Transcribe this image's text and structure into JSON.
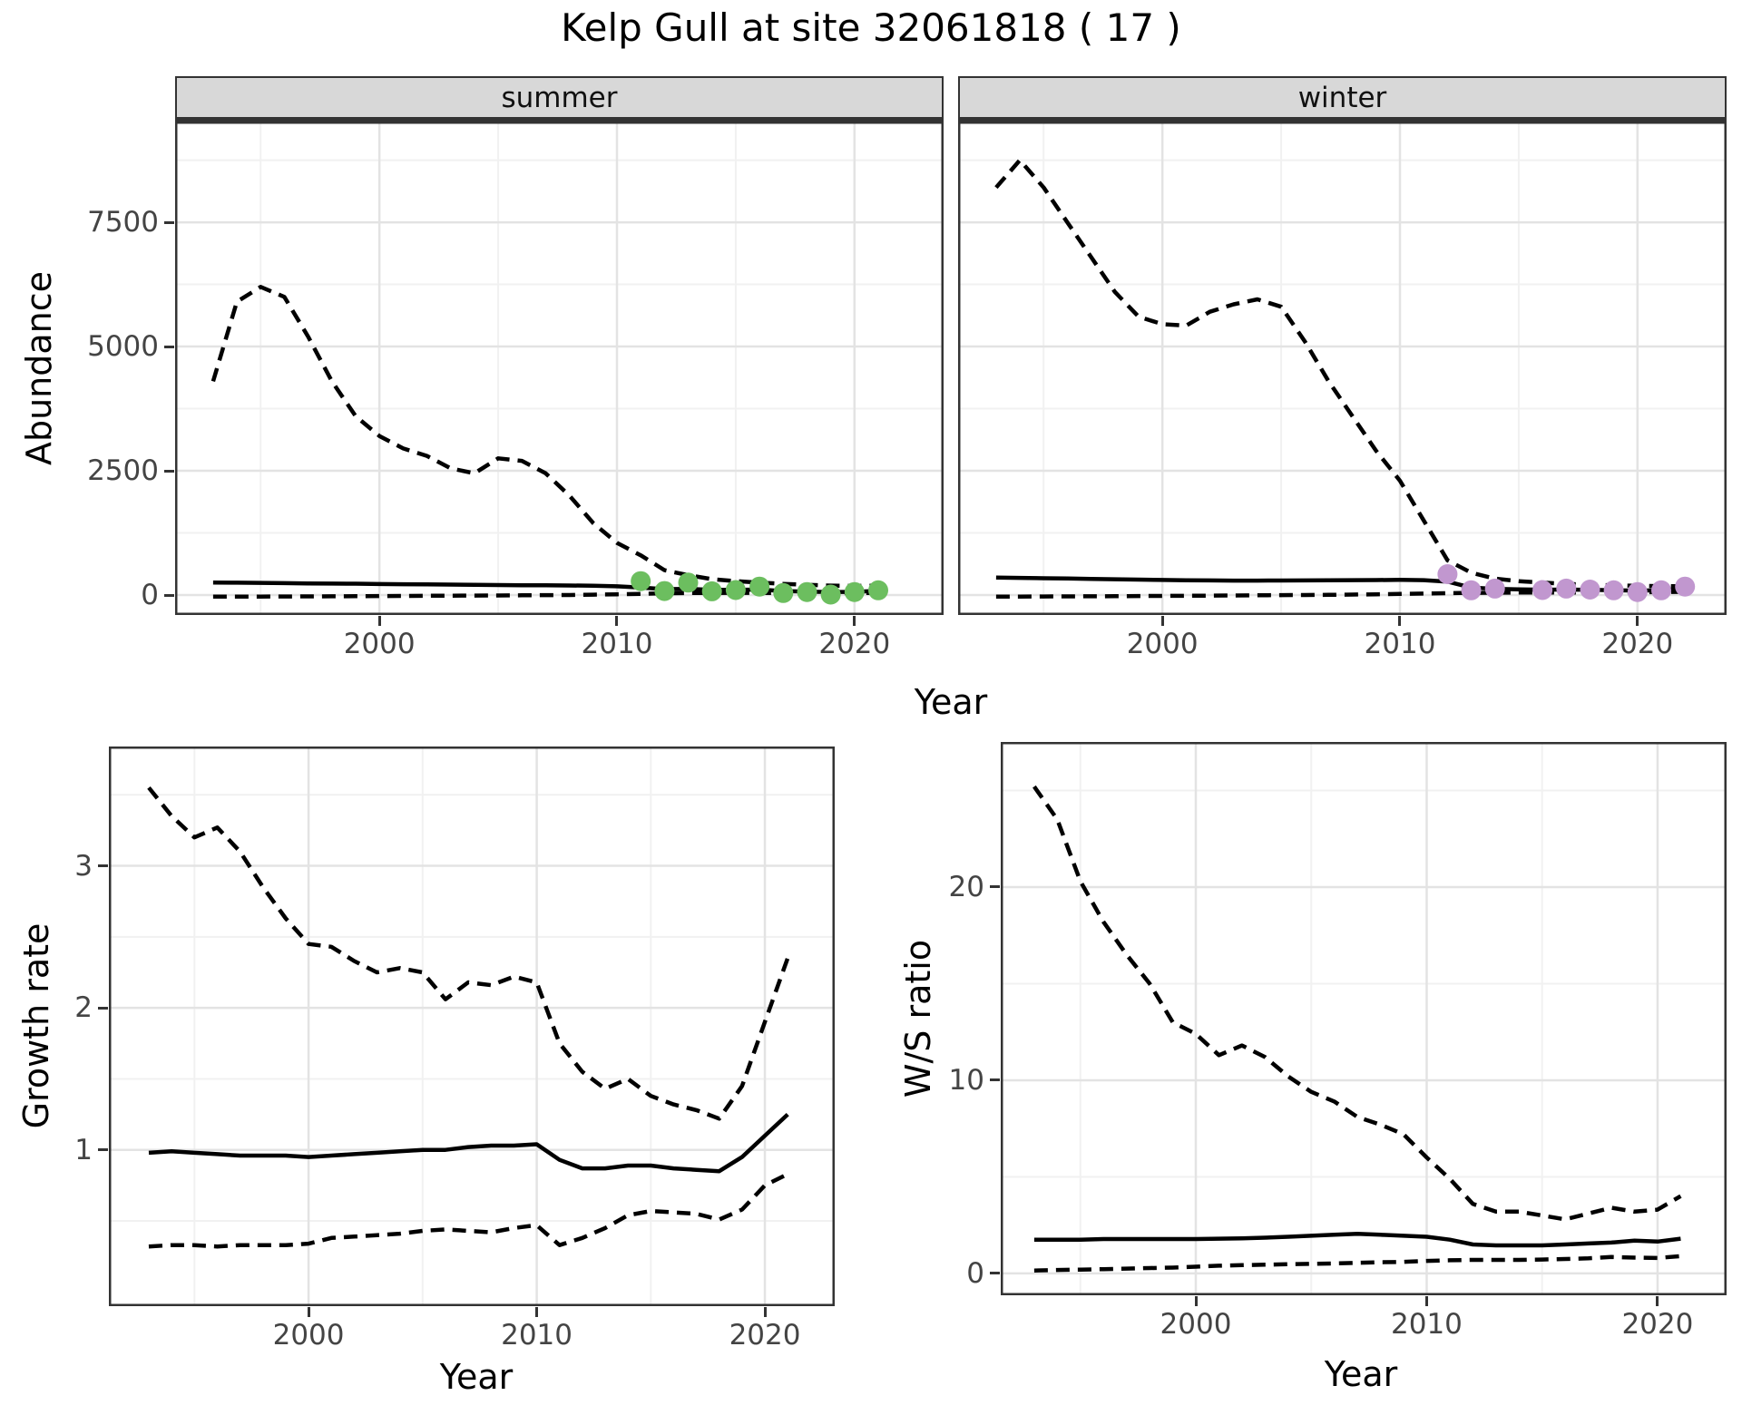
{
  "title": "Kelp Gull at site 32061818 ( 17 )",
  "colors": {
    "summer_point": "#6CBE5F",
    "winter_point": "#C197CF",
    "line": "#000000",
    "strip_bg": "#D8D8D8",
    "grid_major": "#E3E3E3",
    "grid_minor": "#F1F1F1",
    "panel_border": "#333333",
    "axis_text": "#444444"
  },
  "chart_data": [
    {
      "id": "abundance",
      "type": "line",
      "xlabel": "Year",
      "ylabel": "Abundance",
      "xlim": [
        1991.4,
        2023.75
      ],
      "ylim": [
        -401,
        9527
      ],
      "x_ticks": [
        2000,
        2010,
        2020
      ],
      "x_minor": [
        1995,
        2005,
        2015
      ],
      "y_ticks": [
        0,
        2500,
        5000,
        7500
      ],
      "y_minor": [
        1250,
        3750,
        6250,
        8750
      ],
      "legend_position": "none",
      "grid": "on",
      "facets": [
        {
          "label": "summer",
          "series": [
            {
              "name": "ci-upper",
              "style": "dashed",
              "years": [
                1993,
                1994,
                1995,
                1996,
                1997,
                1998,
                1999,
                2000,
                2001,
                2002,
                2003,
                2004,
                2005,
                2006,
                2007,
                2008,
                2009,
                2010,
                2011,
                2012,
                2013,
                2014,
                2015,
                2016,
                2017,
                2018,
                2019,
                2020,
                2021
              ],
              "values": [
                4300,
                5900,
                6200,
                6000,
                5200,
                4300,
                3600,
                3200,
                2950,
                2800,
                2550,
                2450,
                2750,
                2700,
                2450,
                2000,
                1450,
                1050,
                800,
                500,
                400,
                320,
                280,
                250,
                225,
                205,
                190,
                185,
                190
              ]
            },
            {
              "name": "median",
              "style": "solid",
              "years": [
                1993,
                1994,
                1995,
                1996,
                1997,
                1998,
                1999,
                2000,
                2001,
                2002,
                2003,
                2004,
                2005,
                2006,
                2007,
                2008,
                2009,
                2010,
                2011,
                2012,
                2013,
                2014,
                2015,
                2016,
                2017,
                2018,
                2019,
                2020,
                2021
              ],
              "values": [
                250,
                248,
                245,
                240,
                235,
                230,
                228,
                222,
                218,
                214,
                210,
                206,
                202,
                198,
                196,
                192,
                188,
                175,
                150,
                120,
                125,
                105,
                105,
                110,
                80,
                70,
                60,
                65,
                85
              ]
            },
            {
              "name": "ci-lower",
              "style": "dashed",
              "years": [
                1993,
                1994,
                1995,
                1996,
                1997,
                1998,
                1999,
                2000,
                2001,
                2002,
                2003,
                2004,
                2005,
                2006,
                2007,
                2008,
                2009,
                2010,
                2011,
                2012,
                2013,
                2014,
                2015,
                2016,
                2017,
                2018,
                2019,
                2020,
                2021
              ],
              "values": [
                -30,
                -30,
                -30,
                -28,
                -27,
                -25,
                -23,
                -20,
                -18,
                -15,
                -12,
                -10,
                -8,
                -5,
                -2,
                0,
                8,
                15,
                25,
                35,
                40,
                40,
                45,
                45,
                40,
                40,
                35,
                40,
                45
              ]
            }
          ],
          "points": {
            "name": "observed-count",
            "color_key": "summer_point",
            "years": [
              2011,
              2012,
              2013,
              2014,
              2015,
              2016,
              2017,
              2018,
              2019,
              2020,
              2021
            ],
            "values": [
              280,
              80,
              250,
              75,
              100,
              170,
              40,
              60,
              10,
              60,
              95
            ]
          }
        },
        {
          "label": "winter",
          "series": [
            {
              "name": "ci-upper",
              "style": "dashed",
              "years": [
                1993,
                1994,
                1995,
                1996,
                1997,
                1998,
                1999,
                2000,
                2001,
                2002,
                2003,
                2004,
                2005,
                2006,
                2007,
                2008,
                2009,
                2010,
                2011,
                2012,
                2013,
                2014,
                2015,
                2016,
                2017,
                2018,
                2019,
                2020,
                2021,
                2022
              ],
              "values": [
                8200,
                8750,
                8200,
                7500,
                6800,
                6100,
                5600,
                5450,
                5420,
                5700,
                5850,
                5950,
                5800,
                5100,
                4300,
                3600,
                2900,
                2300,
                1500,
                700,
                450,
                330,
                280,
                250,
                225,
                205,
                195,
                185,
                180,
                180
              ]
            },
            {
              "name": "median",
              "style": "solid",
              "years": [
                1993,
                1994,
                1995,
                1996,
                1997,
                1998,
                1999,
                2000,
                2001,
                2002,
                2003,
                2004,
                2005,
                2006,
                2007,
                2008,
                2009,
                2010,
                2011,
                2012,
                2013,
                2014,
                2015,
                2016,
                2017,
                2018,
                2019,
                2020,
                2021,
                2022
              ],
              "values": [
                350,
                345,
                338,
                332,
                326,
                318,
                310,
                303,
                298,
                294,
                291,
                290,
                292,
                295,
                298,
                300,
                302,
                305,
                300,
                270,
                150,
                125,
                115,
                108,
                110,
                105,
                98,
                90,
                98,
                125
              ]
            },
            {
              "name": "ci-lower",
              "style": "dashed",
              "years": [
                1993,
                1994,
                1995,
                1996,
                1997,
                1998,
                1999,
                2000,
                2001,
                2002,
                2003,
                2004,
                2005,
                2006,
                2007,
                2008,
                2009,
                2010,
                2011,
                2012,
                2013,
                2014,
                2015,
                2016,
                2017,
                2018,
                2019,
                2020,
                2021,
                2022
              ],
              "values": [
                -30,
                -30,
                -28,
                -26,
                -25,
                -23,
                -20,
                -18,
                -15,
                -12,
                -8,
                -5,
                -2,
                0,
                5,
                10,
                15,
                22,
                30,
                38,
                45,
                48,
                50,
                52,
                52,
                52,
                54,
                55,
                58,
                65
              ]
            }
          ],
          "points": {
            "name": "observed-count",
            "color_key": "winter_point",
            "years": [
              2012,
              2013,
              2014,
              2016,
              2017,
              2018,
              2019,
              2020,
              2021,
              2022
            ],
            "values": [
              420,
              95,
              130,
              100,
              130,
              110,
              95,
              60,
              95,
              170
            ]
          }
        }
      ]
    },
    {
      "id": "growth_rate",
      "type": "line",
      "xlabel": "Year",
      "ylabel": "Growth rate",
      "xlim": [
        1991.25,
        2023.06
      ],
      "ylim": [
        -0.1,
        3.84
      ],
      "x_ticks": [
        2000,
        2010,
        2020
      ],
      "x_minor": [
        1995,
        2005,
        2015
      ],
      "y_ticks": [
        1,
        2,
        3
      ],
      "y_minor": [
        0.5,
        1.5,
        2.5,
        3.5
      ],
      "legend_position": "none",
      "grid": "on",
      "series": [
        {
          "name": "ci-upper",
          "style": "dashed",
          "years": [
            1993,
            1994,
            1995,
            1996,
            1997,
            1998,
            1999,
            2000,
            2001,
            2002,
            2003,
            2004,
            2005,
            2006,
            2007,
            2008,
            2009,
            2010,
            2011,
            2012,
            2013,
            2014,
            2015,
            2016,
            2017,
            2018,
            2019,
            2020,
            2021
          ],
          "values": [
            3.55,
            3.35,
            3.2,
            3.27,
            3.1,
            2.85,
            2.63,
            2.45,
            2.43,
            2.33,
            2.25,
            2.28,
            2.25,
            2.06,
            2.18,
            2.16,
            2.22,
            2.18,
            1.75,
            1.55,
            1.43,
            1.5,
            1.38,
            1.32,
            1.28,
            1.22,
            1.45,
            1.9,
            2.35
          ]
        },
        {
          "name": "median",
          "style": "solid",
          "years": [
            1993,
            1994,
            1995,
            1996,
            1997,
            1998,
            1999,
            2000,
            2001,
            2002,
            2003,
            2004,
            2005,
            2006,
            2007,
            2008,
            2009,
            2010,
            2011,
            2012,
            2013,
            2014,
            2015,
            2016,
            2017,
            2018,
            2019,
            2020,
            2021
          ],
          "values": [
            0.98,
            0.99,
            0.98,
            0.97,
            0.96,
            0.96,
            0.96,
            0.95,
            0.96,
            0.97,
            0.98,
            0.99,
            1.0,
            1.0,
            1.02,
            1.03,
            1.03,
            1.04,
            0.93,
            0.87,
            0.87,
            0.89,
            0.89,
            0.87,
            0.86,
            0.85,
            0.95,
            1.1,
            1.25
          ]
        },
        {
          "name": "ci-lower",
          "style": "dashed",
          "years": [
            1993,
            1994,
            1995,
            1996,
            1997,
            1998,
            1999,
            2000,
            2001,
            2002,
            2003,
            2004,
            2005,
            2006,
            2007,
            2008,
            2009,
            2010,
            2011,
            2012,
            2013,
            2014,
            2015,
            2016,
            2017,
            2018,
            2019,
            2020,
            2021
          ],
          "values": [
            0.32,
            0.33,
            0.33,
            0.32,
            0.33,
            0.33,
            0.33,
            0.34,
            0.38,
            0.39,
            0.4,
            0.41,
            0.43,
            0.44,
            0.43,
            0.42,
            0.45,
            0.47,
            0.33,
            0.38,
            0.45,
            0.54,
            0.57,
            0.56,
            0.55,
            0.51,
            0.58,
            0.75,
            0.83
          ]
        }
      ]
    },
    {
      "id": "ws_ratio",
      "type": "line",
      "xlabel": "Year",
      "ylabel": "W/S ratio",
      "xlim": [
        1991.55,
        2022.99
      ],
      "ylim": [
        -1.13,
        27.51
      ],
      "x_ticks": [
        2000,
        2010,
        2020
      ],
      "x_minor": [
        1995,
        2005,
        2015
      ],
      "y_ticks": [
        0,
        10,
        20
      ],
      "y_minor": [
        5,
        15,
        25
      ],
      "legend_position": "none",
      "grid": "on",
      "series": [
        {
          "name": "ci-upper",
          "style": "dashed",
          "years": [
            1993,
            1994,
            1995,
            1996,
            1997,
            1998,
            1999,
            2000,
            2001,
            2002,
            2003,
            2004,
            2005,
            2006,
            2007,
            2008,
            2009,
            2010,
            2011,
            2012,
            2013,
            2014,
            2015,
            2016,
            2017,
            2018,
            2019,
            2020,
            2021
          ],
          "values": [
            25.2,
            23.5,
            20.3,
            18.2,
            16.5,
            15.0,
            13.0,
            12.4,
            11.3,
            11.8,
            11.2,
            10.2,
            9.4,
            8.9,
            8.1,
            7.7,
            7.2,
            6.0,
            4.9,
            3.6,
            3.2,
            3.2,
            3.0,
            2.8,
            3.1,
            3.4,
            3.2,
            3.3,
            4.0
          ]
        },
        {
          "name": "median",
          "style": "solid",
          "years": [
            1993,
            1994,
            1995,
            1996,
            1997,
            1998,
            1999,
            2000,
            2001,
            2002,
            2003,
            2004,
            2005,
            2006,
            2007,
            2008,
            2009,
            2010,
            2011,
            2012,
            2013,
            2014,
            2015,
            2016,
            2017,
            2018,
            2019,
            2020,
            2021
          ],
          "values": [
            1.75,
            1.75,
            1.75,
            1.78,
            1.78,
            1.78,
            1.78,
            1.78,
            1.8,
            1.82,
            1.85,
            1.9,
            1.95,
            2.0,
            2.05,
            2.0,
            1.95,
            1.9,
            1.75,
            1.5,
            1.45,
            1.45,
            1.45,
            1.5,
            1.55,
            1.6,
            1.7,
            1.65,
            1.8
          ]
        },
        {
          "name": "ci-lower",
          "style": "dashed",
          "years": [
            1993,
            1994,
            1995,
            1996,
            1997,
            1998,
            1999,
            2000,
            2001,
            2002,
            2003,
            2004,
            2005,
            2006,
            2007,
            2008,
            2009,
            2010,
            2011,
            2012,
            2013,
            2014,
            2015,
            2016,
            2017,
            2018,
            2019,
            2020,
            2021
          ],
          "values": [
            0.15,
            0.18,
            0.2,
            0.22,
            0.25,
            0.28,
            0.3,
            0.35,
            0.4,
            0.43,
            0.45,
            0.48,
            0.5,
            0.52,
            0.55,
            0.58,
            0.6,
            0.65,
            0.68,
            0.7,
            0.7,
            0.7,
            0.72,
            0.75,
            0.78,
            0.85,
            0.82,
            0.8,
            0.9
          ]
        }
      ]
    }
  ]
}
